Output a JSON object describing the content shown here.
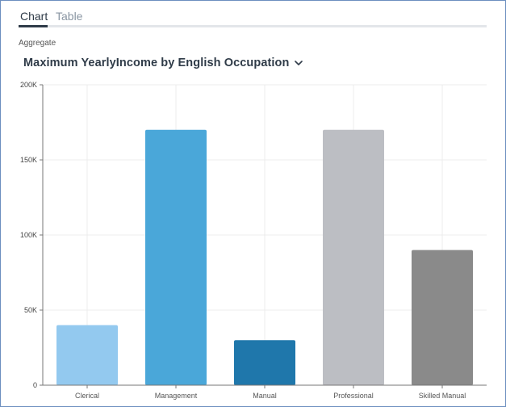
{
  "tabs": [
    {
      "label": "Chart",
      "active": true
    },
    {
      "label": "Table",
      "active": false
    }
  ],
  "aggregate_label": "Aggregate",
  "chart_title": "Maximum YearlyIncome by English Occupation",
  "colors": {
    "accent": "#2f3b48",
    "bars": [
      "#93c9ef",
      "#4aa7d9",
      "#1f77ab",
      "#bcbec3",
      "#8a8a8a"
    ]
  },
  "chart_data": {
    "type": "bar",
    "title": "Maximum YearlyIncome by English Occupation",
    "xlabel": "",
    "ylabel": "",
    "categories": [
      "Clerical",
      "Management",
      "Manual",
      "Professional",
      "Skilled Manual"
    ],
    "values": [
      40000,
      170000,
      30000,
      170000,
      90000
    ],
    "ylim": [
      0,
      200000
    ],
    "yticks": [
      0,
      50000,
      100000,
      150000,
      200000
    ],
    "ytick_labels": [
      "0",
      "50K",
      "100K",
      "150K",
      "200K"
    ],
    "grid": true,
    "legend": "none"
  }
}
